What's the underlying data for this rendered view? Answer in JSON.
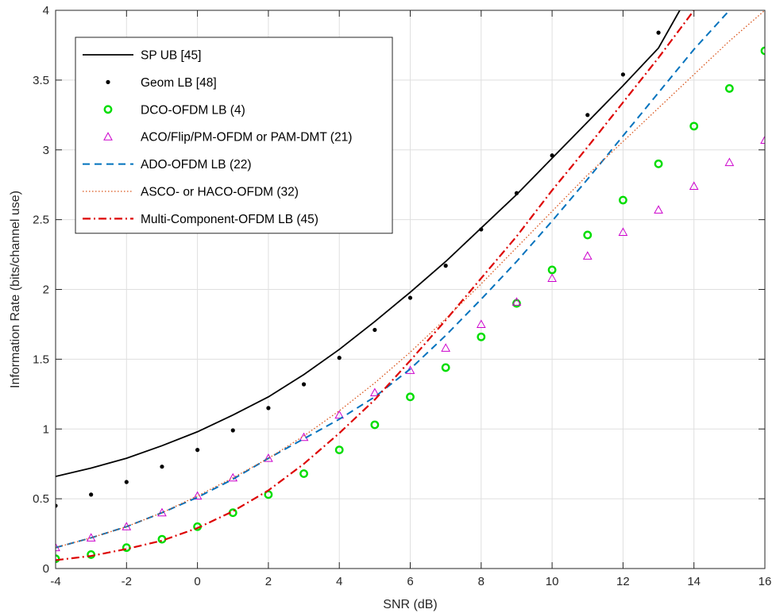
{
  "chart_data": {
    "type": "line",
    "xlabel": "SNR (dB)",
    "ylabel": "Information Rate (bits/channel use)",
    "xlim": [
      -4,
      16
    ],
    "ylim": [
      0,
      4
    ],
    "xticks": [
      -4,
      -2,
      0,
      2,
      4,
      6,
      8,
      10,
      12,
      14,
      16
    ],
    "yticks": [
      0,
      0.5,
      1,
      1.5,
      2,
      2.5,
      3,
      3.5,
      4
    ],
    "xtick_labels": [
      "-4",
      "-2",
      "0",
      "2",
      "4",
      "6",
      "8",
      "10",
      "12",
      "14",
      "16"
    ],
    "ytick_labels": [
      "0",
      "0.5",
      "1",
      "1.5",
      "2",
      "2.5",
      "3",
      "3.5",
      "4"
    ],
    "grid": true,
    "legend_position": "top-left",
    "series": [
      {
        "name": "SP UB [45]",
        "style": "solid-line",
        "color": "#000000",
        "x": [
          -4,
          -3,
          -2,
          -1,
          0,
          1,
          2,
          3,
          4,
          5,
          6,
          7,
          8,
          9,
          10,
          11,
          12,
          13,
          13.6
        ],
        "y": [
          0.66,
          0.72,
          0.79,
          0.88,
          0.98,
          1.1,
          1.23,
          1.39,
          1.57,
          1.77,
          1.98,
          2.2,
          2.44,
          2.68,
          2.94,
          3.2,
          3.46,
          3.73,
          4.0
        ]
      },
      {
        "name": "Geom LB [48]",
        "style": "dots",
        "color": "#000000",
        "x": [
          -4,
          -3,
          -2,
          -1,
          0,
          1,
          2,
          3,
          4,
          5,
          6,
          7,
          8,
          9,
          10,
          11,
          12,
          13
        ],
        "y": [
          0.45,
          0.53,
          0.62,
          0.73,
          0.85,
          0.99,
          1.15,
          1.32,
          1.51,
          1.71,
          1.94,
          2.17,
          2.43,
          2.69,
          2.96,
          3.25,
          3.54,
          3.84
        ]
      },
      {
        "name": "DCO-OFDM LB (4)",
        "style": "circles",
        "color": "#00dd00",
        "x": [
          -4,
          -3,
          -2,
          -1,
          0,
          1,
          2,
          3,
          4,
          5,
          6,
          7,
          8,
          9,
          10,
          11,
          12,
          13,
          14,
          15,
          16
        ],
        "y": [
          0.07,
          0.1,
          0.15,
          0.21,
          0.3,
          0.4,
          0.53,
          0.68,
          0.85,
          1.03,
          1.23,
          1.44,
          1.66,
          1.9,
          2.14,
          2.39,
          2.64,
          2.9,
          3.17,
          3.44,
          3.71
        ]
      },
      {
        "name": "ACO/Flip/PM-OFDM or PAM-DMT (21)",
        "style": "triangles",
        "color": "#cc00cc",
        "x": [
          -4,
          -3,
          -2,
          -1,
          0,
          1,
          2,
          3,
          4,
          5,
          6,
          7,
          8,
          9,
          10,
          11,
          12,
          13,
          14,
          15,
          16
        ],
        "y": [
          0.15,
          0.22,
          0.3,
          0.4,
          0.52,
          0.65,
          0.79,
          0.94,
          1.1,
          1.26,
          1.42,
          1.58,
          1.75,
          1.91,
          2.08,
          2.24,
          2.41,
          2.57,
          2.74,
          2.91,
          3.07
        ]
      },
      {
        "name": "ADO-OFDM LB (22)",
        "style": "dashed-line",
        "color": "#0072bd",
        "x": [
          -4,
          -3,
          -2,
          -1,
          0,
          1,
          2,
          3,
          4,
          5,
          6,
          7,
          8,
          9,
          10,
          11,
          12,
          13,
          14,
          15
        ],
        "y": [
          0.15,
          0.22,
          0.3,
          0.4,
          0.51,
          0.64,
          0.79,
          0.93,
          1.07,
          1.23,
          1.43,
          1.67,
          1.93,
          2.2,
          2.49,
          2.79,
          3.1,
          3.41,
          3.72,
          4.0
        ]
      },
      {
        "name": "ASCO- or HACO-OFDM (32)",
        "style": "dotted-line",
        "color": "#d95319",
        "x": [
          -4,
          -3,
          -2,
          -1,
          0,
          1,
          2,
          3,
          4,
          5,
          6,
          7,
          8,
          9,
          10,
          11,
          12,
          13,
          14,
          15,
          16
        ],
        "y": [
          0.15,
          0.22,
          0.3,
          0.4,
          0.52,
          0.65,
          0.79,
          0.95,
          1.13,
          1.33,
          1.55,
          1.79,
          2.04,
          2.3,
          2.56,
          2.82,
          3.06,
          3.3,
          3.54,
          3.78,
          4.0
        ]
      },
      {
        "name": "Multi-Component-OFDM LB (45)",
        "style": "dashdot-line",
        "color": "#dd0000",
        "x": [
          -4,
          -3,
          -2,
          -1,
          0,
          1,
          2,
          3,
          4,
          5,
          6,
          7,
          8,
          9,
          10,
          11,
          12,
          13,
          14
        ],
        "y": [
          0.06,
          0.09,
          0.14,
          0.2,
          0.29,
          0.41,
          0.56,
          0.75,
          0.97,
          1.21,
          1.49,
          1.78,
          2.08,
          2.38,
          2.71,
          3.02,
          3.34,
          3.66,
          4.0
        ]
      }
    ]
  }
}
